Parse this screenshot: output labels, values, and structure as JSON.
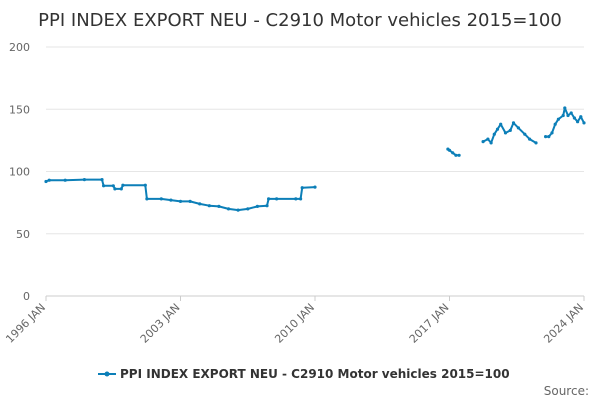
{
  "chart_data": {
    "type": "line",
    "title": "PPI INDEX EXPORT NEU - C2910 Motor vehicles 2015=100",
    "xlabel": "",
    "ylabel": "",
    "xlim": [
      "1996-01",
      "2024-01"
    ],
    "ylim": [
      0,
      200
    ],
    "y_ticks": [
      0,
      50,
      100,
      150,
      200
    ],
    "x_ticks": [
      "1996 JAN",
      "2003 JAN",
      "2010 JAN",
      "2017 JAN",
      "2024 JAN"
    ],
    "grid": "horizontal",
    "legend": "bottom-center",
    "source_label": "Source:",
    "series": [
      {
        "name": "PPI INDEX EXPORT NEU - C2910 Motor vehicles 2015=100",
        "color": "#0c7fb8",
        "segments": [
          [
            [
              "1996-01",
              92
            ],
            [
              "1996-03",
              93
            ],
            [
              "1997-01",
              93
            ],
            [
              "1998-01",
              93.5
            ],
            [
              "1998-12",
              93.5
            ],
            [
              "1999-01",
              88.5
            ],
            [
              "1999-07",
              88.5
            ],
            [
              "1999-08",
              86
            ],
            [
              "1999-12",
              86
            ],
            [
              "2000-01",
              89
            ],
            [
              "2001-03",
              89
            ],
            [
              "2001-04",
              78
            ],
            [
              "2002-01",
              78
            ],
            [
              "2002-07",
              77
            ],
            [
              "2003-01",
              76
            ],
            [
              "2003-07",
              76
            ],
            [
              "2004-01",
              74
            ],
            [
              "2004-07",
              72.5
            ],
            [
              "2005-01",
              72
            ],
            [
              "2005-07",
              70
            ],
            [
              "2006-01",
              69
            ],
            [
              "2006-07",
              70
            ],
            [
              "2007-01",
              72
            ],
            [
              "2007-07",
              72.5
            ],
            [
              "2007-08",
              78
            ],
            [
              "2008-01",
              78
            ],
            [
              "2009-01",
              78
            ],
            [
              "2009-04",
              78
            ],
            [
              "2009-05",
              87
            ],
            [
              "2010-01",
              87.5
            ]
          ],
          [
            [
              "2016-12",
              118
            ],
            [
              "2017-01",
              117
            ],
            [
              "2017-03",
              115
            ],
            [
              "2017-05",
              113
            ],
            [
              "2017-07",
              113
            ]
          ],
          [
            [
              "2018-10",
              124
            ],
            [
              "2019-01",
              126
            ],
            [
              "2019-03",
              123
            ],
            [
              "2019-05",
              130
            ],
            [
              "2019-07",
              134
            ],
            [
              "2019-09",
              138
            ],
            [
              "2019-12",
              131
            ],
            [
              "2020-03",
              133
            ],
            [
              "2020-05",
              139
            ],
            [
              "2020-08",
              135
            ],
            [
              "2020-12",
              130
            ],
            [
              "2021-03",
              126
            ],
            [
              "2021-07",
              123
            ]
          ],
          [
            [
              "2022-01",
              128
            ],
            [
              "2022-03",
              128
            ],
            [
              "2022-05",
              131
            ],
            [
              "2022-07",
              138
            ],
            [
              "2022-09",
              142
            ],
            [
              "2022-12",
              145
            ],
            [
              "2023-01",
              151
            ],
            [
              "2023-03",
              145
            ],
            [
              "2023-05",
              147
            ],
            [
              "2023-07",
              143
            ],
            [
              "2023-09",
              140
            ],
            [
              "2023-11",
              144
            ],
            [
              "2024-01",
              139
            ]
          ]
        ]
      }
    ]
  }
}
